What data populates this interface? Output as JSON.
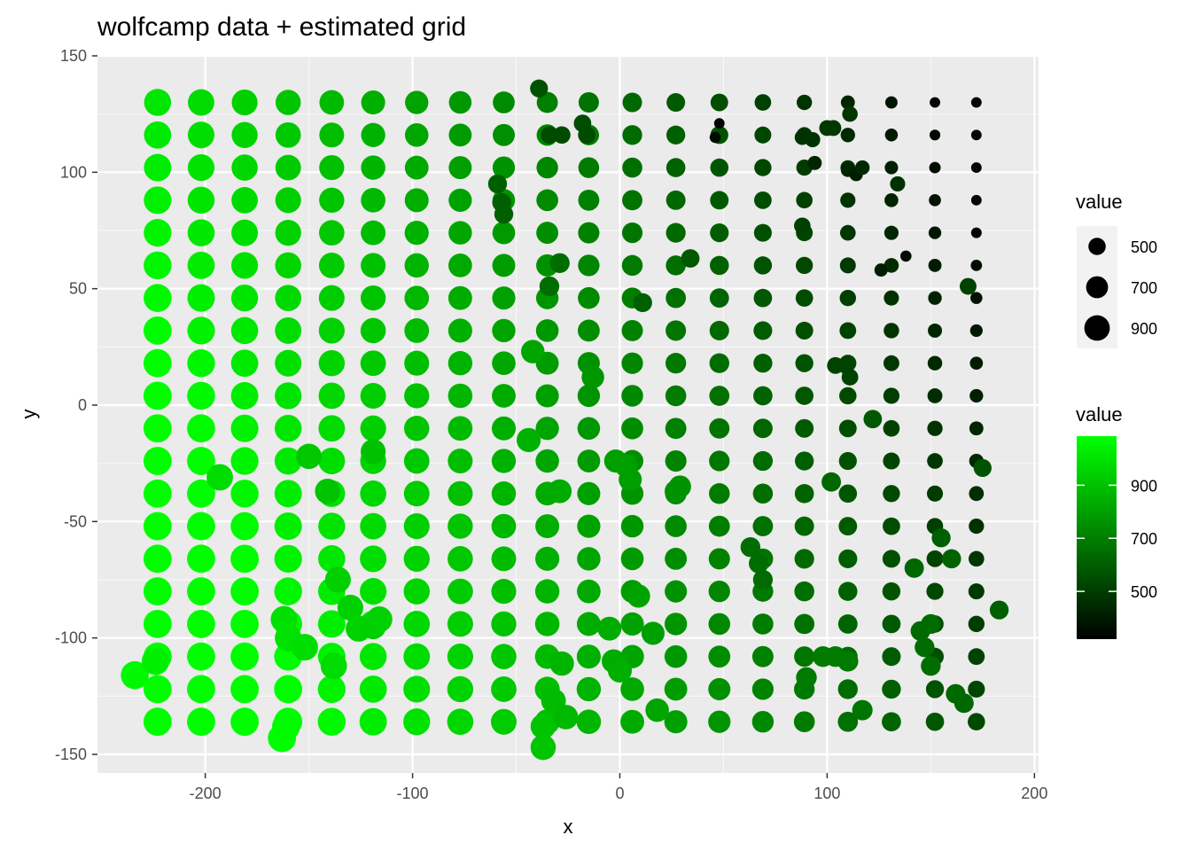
{
  "chart_data": {
    "type": "scatter",
    "title": "wolfcamp data + estimated grid",
    "xlabel": "x",
    "ylabel": "y",
    "xlim": [
      -252,
      202
    ],
    "ylim": [
      -158,
      150
    ],
    "x_ticks": [
      -200,
      -100,
      0,
      100,
      200
    ],
    "y_ticks": [
      -150,
      -100,
      -50,
      0,
      50,
      100,
      150
    ],
    "grid": true,
    "legend_position": "right",
    "size_legend": {
      "title": "value",
      "entries": [
        {
          "label": "500",
          "value": 500
        },
        {
          "label": "700",
          "value": 700
        },
        {
          "label": "900",
          "value": 900
        }
      ]
    },
    "color_legend": {
      "title": "value",
      "low_color": "#000000",
      "high_color": "#00ff00",
      "range": [
        320,
        1085
      ],
      "tick_values": [
        500,
        700,
        900
      ],
      "tick_labels": [
        "500",
        "700",
        "900"
      ]
    },
    "grid_x": [
      -223,
      -202,
      -181,
      -160,
      -139,
      -119,
      -98,
      -77,
      -56,
      -35,
      -15,
      6,
      27,
      48,
      69,
      89,
      110,
      131,
      152,
      172
    ],
    "grid_y": [
      130,
      116,
      102,
      88,
      74,
      60,
      46,
      32,
      18,
      4,
      -10,
      -24,
      -38,
      -52,
      -66,
      -80,
      -94,
      -108,
      -122,
      -136
    ],
    "grid_value_model": {
      "intercept": 700,
      "x_coef": -1.8,
      "y_coef": -0.8,
      "min": 330,
      "max": 1080
    },
    "observations": [
      {
        "x": -234,
        "y": -116,
        "value": 1062
      },
      {
        "x": -224,
        "y": -110,
        "value": 1030
      },
      {
        "x": -193,
        "y": -31,
        "value": 960
      },
      {
        "x": -163,
        "y": -143,
        "value": 1080
      },
      {
        "x": -161,
        "y": -138,
        "value": 1070
      },
      {
        "x": -162,
        "y": -92,
        "value": 978
      },
      {
        "x": -160,
        "y": -100,
        "value": 980
      },
      {
        "x": -152,
        "y": -104,
        "value": 968
      },
      {
        "x": -150,
        "y": -22,
        "value": 890
      },
      {
        "x": -141,
        "y": -37,
        "value": 880
      },
      {
        "x": -138,
        "y": -112,
        "value": 958
      },
      {
        "x": -136,
        "y": -75,
        "value": 918
      },
      {
        "x": -130,
        "y": -87,
        "value": 920
      },
      {
        "x": -126,
        "y": -96,
        "value": 930
      },
      {
        "x": -119,
        "y": -20,
        "value": 870
      },
      {
        "x": -119,
        "y": -95,
        "value": 920
      },
      {
        "x": -116,
        "y": -92,
        "value": 924
      },
      {
        "x": -44,
        "y": -15,
        "value": 820
      },
      {
        "x": -42,
        "y": 23,
        "value": 780
      },
      {
        "x": -37,
        "y": -138,
        "value": 880
      },
      {
        "x": -37,
        "y": -147,
        "value": 886
      },
      {
        "x": -32,
        "y": -127,
        "value": 850
      },
      {
        "x": -29,
        "y": -37,
        "value": 800
      },
      {
        "x": -28,
        "y": -111,
        "value": 830
      },
      {
        "x": -26,
        "y": -134,
        "value": 840
      },
      {
        "x": -13,
        "y": 12,
        "value": 730
      },
      {
        "x": -5,
        "y": -96,
        "value": 800
      },
      {
        "x": -3,
        "y": -110,
        "value": 800
      },
      {
        "x": 0,
        "y": -114,
        "value": 810
      },
      {
        "x": -2,
        "y": -24,
        "value": 760
      },
      {
        "x": 3,
        "y": -26,
        "value": 760
      },
      {
        "x": 5,
        "y": -32,
        "value": 760
      },
      {
        "x": 9,
        "y": -82,
        "value": 770
      },
      {
        "x": 16,
        "y": -98,
        "value": 760
      },
      {
        "x": 18,
        "y": -131,
        "value": 780
      },
      {
        "x": 27,
        "y": -37,
        "value": 720
      },
      {
        "x": 29,
        "y": -35,
        "value": 716
      },
      {
        "x": -59,
        "y": 95,
        "value": 560
      },
      {
        "x": -57,
        "y": 87,
        "value": 560
      },
      {
        "x": -56,
        "y": 82,
        "value": 562
      },
      {
        "x": -39,
        "y": 136,
        "value": 520
      },
      {
        "x": -34,
        "y": 116,
        "value": 500
      },
      {
        "x": -28,
        "y": 116,
        "value": 500
      },
      {
        "x": -18,
        "y": 121,
        "value": 505
      },
      {
        "x": -16,
        "y": 116,
        "value": 500
      },
      {
        "x": -29,
        "y": 61,
        "value": 600
      },
      {
        "x": -34,
        "y": 51,
        "value": 600
      },
      {
        "x": 11,
        "y": 44,
        "value": 560
      },
      {
        "x": 34,
        "y": 63,
        "value": 540
      },
      {
        "x": 48,
        "y": 121,
        "value": 330
      },
      {
        "x": 46,
        "y": 115,
        "value": 340
      },
      {
        "x": 63,
        "y": -61,
        "value": 600
      },
      {
        "x": 67,
        "y": -68,
        "value": 600
      },
      {
        "x": 69,
        "y": -75,
        "value": 596
      },
      {
        "x": 88,
        "y": 77,
        "value": 470
      },
      {
        "x": 88,
        "y": 115,
        "value": 430
      },
      {
        "x": 93,
        "y": 114,
        "value": 430
      },
      {
        "x": 94,
        "y": 104,
        "value": 400
      },
      {
        "x": 100,
        "y": 119,
        "value": 450
      },
      {
        "x": 103,
        "y": 119,
        "value": 450
      },
      {
        "x": 111,
        "y": 125,
        "value": 440
      },
      {
        "x": 110,
        "y": 101,
        "value": 400
      },
      {
        "x": 114,
        "y": 99,
        "value": 380
      },
      {
        "x": 117,
        "y": 102,
        "value": 410
      },
      {
        "x": 134,
        "y": 95,
        "value": 430
      },
      {
        "x": 126,
        "y": 58,
        "value": 380
      },
      {
        "x": 138,
        "y": 64,
        "value": 340
      },
      {
        "x": 168,
        "y": 51,
        "value": 480
      },
      {
        "x": 104,
        "y": 17,
        "value": 480
      },
      {
        "x": 109,
        "y": 17,
        "value": 480
      },
      {
        "x": 111,
        "y": 12,
        "value": 476
      },
      {
        "x": 122,
        "y": -6,
        "value": 540
      },
      {
        "x": 102,
        "y": -33,
        "value": 580
      },
      {
        "x": 98,
        "y": -108,
        "value": 640
      },
      {
        "x": 104,
        "y": -108,
        "value": 640
      },
      {
        "x": 110,
        "y": -110,
        "value": 645
      },
      {
        "x": 90,
        "y": -117,
        "value": 640
      },
      {
        "x": 117,
        "y": -131,
        "value": 625
      },
      {
        "x": 142,
        "y": -70,
        "value": 580
      },
      {
        "x": 155,
        "y": -57,
        "value": 560
      },
      {
        "x": 160,
        "y": -66,
        "value": 570
      },
      {
        "x": 145,
        "y": -97,
        "value": 590
      },
      {
        "x": 147,
        "y": -104,
        "value": 596
      },
      {
        "x": 150,
        "y": -112,
        "value": 600
      },
      {
        "x": 150,
        "y": -94,
        "value": 596
      },
      {
        "x": 162,
        "y": -124,
        "value": 590
      },
      {
        "x": 166,
        "y": -128,
        "value": 586
      },
      {
        "x": 175,
        "y": -27,
        "value": 520
      },
      {
        "x": 183,
        "y": -88,
        "value": 560
      }
    ]
  }
}
